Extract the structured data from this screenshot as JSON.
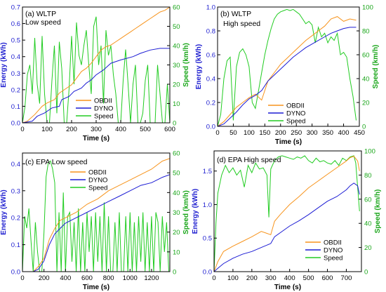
{
  "colors": {
    "obd": "#f7941d",
    "dyno": "#1c1cd4",
    "speed": "#22cc22",
    "axis": "#000000",
    "energy_axis": "#1f1fd0",
    "speed_axis": "#1aa61a"
  },
  "chart_data": [
    {
      "type": "line",
      "label": "(a) WLTP",
      "subtitle": "Low speed",
      "xlabel": "Time (s)",
      "ylabel_left": "Energy (kWh)",
      "ylabel_right": "Speed (km/h)",
      "xlim": [
        0,
        600
      ],
      "ylim_left": [
        0,
        0.7
      ],
      "ylim_right": [
        0,
        60
      ],
      "xticks": [
        "0",
        "100",
        "200",
        "300",
        "400",
        "500",
        "600"
      ],
      "yticks_left": [
        "0.0",
        "0.1",
        "0.2",
        "0.3",
        "0.4",
        "0.5",
        "0.6",
        "0.7"
      ],
      "yticks_right": [
        "0",
        "10",
        "20",
        "30",
        "40",
        "50",
        "60"
      ],
      "legend": [
        "OBDII",
        "DYNO",
        "Speed"
      ],
      "legend_position": "bottom-center",
      "series": [
        {
          "name": "OBDII",
          "axis": "left",
          "x": [
            0,
            20,
            50,
            80,
            100,
            130,
            150,
            180,
            200,
            220,
            240,
            260,
            280,
            300,
            320,
            340,
            360,
            380,
            400,
            420,
            440,
            460,
            480,
            500,
            520,
            540,
            560,
            580,
            600
          ],
          "y": [
            0,
            0.01,
            0.05,
            0.1,
            0.12,
            0.14,
            0.18,
            0.21,
            0.23,
            0.27,
            0.31,
            0.33,
            0.36,
            0.4,
            0.44,
            0.46,
            0.47,
            0.49,
            0.51,
            0.53,
            0.55,
            0.57,
            0.59,
            0.61,
            0.63,
            0.65,
            0.67,
            0.68,
            0.7
          ]
        },
        {
          "name": "DYNO",
          "axis": "left",
          "x": [
            0,
            40,
            60,
            90,
            120,
            150,
            160,
            190,
            210,
            240,
            260,
            280,
            300,
            330,
            360,
            400,
            450,
            480,
            520,
            560,
            600
          ],
          "y": [
            0,
            0.01,
            0.04,
            0.06,
            0.09,
            0.1,
            0.14,
            0.16,
            0.19,
            0.21,
            0.24,
            0.26,
            0.29,
            0.32,
            0.36,
            0.38,
            0.4,
            0.42,
            0.44,
            0.45,
            0.45
          ]
        },
        {
          "name": "Speed",
          "axis": "right",
          "x": [
            0,
            10,
            20,
            30,
            40,
            50,
            60,
            70,
            80,
            90,
            100,
            110,
            120,
            130,
            140,
            150,
            160,
            170,
            180,
            190,
            200,
            210,
            220,
            230,
            240,
            250,
            260,
            270,
            280,
            290,
            300,
            310,
            320,
            330,
            340,
            350,
            360,
            370,
            380,
            390,
            400,
            410,
            420,
            430,
            440,
            450,
            460,
            470,
            480,
            490,
            500,
            510,
            520,
            530,
            540,
            550,
            560,
            570,
            580,
            590,
            600
          ],
          "y": [
            0,
            8,
            25,
            30,
            15,
            44,
            20,
            10,
            45,
            15,
            0,
            0,
            22,
            40,
            5,
            42,
            28,
            0,
            0,
            18,
            45,
            20,
            52,
            35,
            30,
            40,
            48,
            30,
            15,
            50,
            55,
            30,
            40,
            10,
            48,
            35,
            40,
            25,
            15,
            0,
            0,
            22,
            38,
            20,
            0,
            20,
            30,
            0,
            0,
            5,
            22,
            30,
            0,
            0,
            0,
            30,
            15,
            0,
            0,
            20,
            0
          ]
        }
      ]
    },
    {
      "type": "line",
      "label": "(b) WLTP",
      "subtitle": "High speed",
      "xlabel": "Time (s)",
      "ylabel_left": "Energy (kWh)",
      "ylabel_right": "Speed (km/h)",
      "xlim": [
        0,
        450
      ],
      "ylim_left": [
        0,
        1.0
      ],
      "ylim_right": [
        0,
        100
      ],
      "xticks": [
        "0",
        "50",
        "100",
        "150",
        "200",
        "250",
        "300",
        "350",
        "400",
        "450"
      ],
      "yticks_left": [
        "0.0",
        "0.2",
        "0.4",
        "0.6",
        "0.8",
        "1.0"
      ],
      "yticks_right": [
        "0",
        "20",
        "40",
        "60",
        "80",
        "100"
      ],
      "legend": [
        "OBDII",
        "DYNO",
        "Speed"
      ],
      "legend_position": "bottom-center",
      "series": [
        {
          "name": "OBDII",
          "axis": "left",
          "x": [
            0,
            20,
            40,
            60,
            80,
            100,
            120,
            140,
            160,
            180,
            200,
            220,
            240,
            260,
            280,
            300,
            320,
            340,
            360,
            380,
            400,
            420,
            440
          ],
          "y": [
            0,
            0.04,
            0.1,
            0.16,
            0.2,
            0.24,
            0.27,
            0.22,
            0.38,
            0.45,
            0.52,
            0.57,
            0.62,
            0.67,
            0.72,
            0.76,
            0.8,
            0.84,
            0.9,
            0.92,
            0.88,
            0.9,
            0.89
          ]
        },
        {
          "name": "DYNO",
          "axis": "left",
          "x": [
            0,
            20,
            40,
            60,
            80,
            100,
            120,
            140,
            160,
            180,
            200,
            220,
            240,
            260,
            280,
            300,
            320,
            340,
            360,
            380,
            400,
            420,
            440
          ],
          "y": [
            0,
            0.02,
            0.07,
            0.12,
            0.18,
            0.23,
            0.26,
            0.3,
            0.38,
            0.43,
            0.48,
            0.53,
            0.58,
            0.62,
            0.66,
            0.69,
            0.72,
            0.75,
            0.78,
            0.8,
            0.82,
            0.83,
            0.83
          ]
        },
        {
          "name": "Speed",
          "axis": "right",
          "x": [
            0,
            10,
            20,
            30,
            40,
            50,
            60,
            70,
            80,
            90,
            100,
            110,
            120,
            130,
            140,
            150,
            160,
            170,
            180,
            190,
            200,
            210,
            220,
            230,
            240,
            250,
            260,
            270,
            280,
            290,
            300,
            310,
            320,
            330,
            340,
            350,
            360,
            370,
            380,
            390,
            400,
            410,
            420,
            430,
            440
          ],
          "y": [
            0,
            10,
            40,
            55,
            58,
            5,
            50,
            62,
            65,
            60,
            50,
            20,
            15,
            30,
            45,
            60,
            72,
            82,
            90,
            94,
            96,
            97,
            98,
            97,
            98,
            96,
            94,
            90,
            86,
            88,
            85,
            70,
            83,
            75,
            78,
            70,
            75,
            72,
            78,
            60,
            62,
            58,
            40,
            25,
            5
          ]
        }
      ]
    },
    {
      "type": "line",
      "label": "(c) EPA Low speed",
      "xlabel": "Time (s)",
      "ylabel_left": "Energy (kWh)",
      "ylabel_right": "Speed (km/h)",
      "xlim": [
        0,
        1370
      ],
      "ylim_left": [
        0,
        0.44
      ],
      "ylim_right": [
        0,
        60
      ],
      "xticks": [
        "0",
        "200",
        "400",
        "600",
        "800",
        "1000",
        "1200"
      ],
      "yticks_left": [
        "0.0",
        "0.1",
        "0.2",
        "0.3",
        "0.4"
      ],
      "yticks_right": [
        "0",
        "10",
        "20",
        "30",
        "40",
        "50",
        "60"
      ],
      "legend": [
        "OBDII",
        "DYNO",
        "Speed"
      ],
      "legend_position": "top-center",
      "series": [
        {
          "name": "OBDII",
          "axis": "left",
          "x": [
            0,
            100,
            150,
            200,
            250,
            300,
            350,
            400,
            500,
            600,
            700,
            800,
            900,
            1000,
            1100,
            1200,
            1300,
            1370
          ],
          "y": [
            0,
            0.0,
            0.02,
            0.05,
            0.12,
            0.16,
            0.19,
            0.2,
            0.22,
            0.25,
            0.27,
            0.3,
            0.32,
            0.34,
            0.36,
            0.38,
            0.41,
            0.42
          ]
        },
        {
          "name": "DYNO",
          "axis": "left",
          "x": [
            0,
            100,
            150,
            200,
            250,
            300,
            350,
            400,
            500,
            600,
            700,
            800,
            900,
            1000,
            1100,
            1200,
            1300,
            1370
          ],
          "y": [
            0,
            0.0,
            0.01,
            0.04,
            0.1,
            0.14,
            0.16,
            0.18,
            0.2,
            0.22,
            0.24,
            0.26,
            0.28,
            0.3,
            0.32,
            0.33,
            0.35,
            0.36
          ]
        },
        {
          "name": "Speed",
          "axis": "right",
          "x": [
            0,
            20,
            40,
            60,
            80,
            100,
            120,
            140,
            160,
            180,
            200,
            220,
            240,
            260,
            280,
            300,
            320,
            340,
            360,
            380,
            400,
            420,
            440,
            460,
            480,
            500,
            520,
            540,
            560,
            580,
            600,
            620,
            640,
            660,
            680,
            700,
            720,
            740,
            760,
            780,
            800,
            820,
            840,
            860,
            880,
            900,
            920,
            940,
            960,
            980,
            1000,
            1020,
            1040,
            1060,
            1080,
            1100,
            1120,
            1140,
            1160,
            1180,
            1200,
            1220,
            1240,
            1260,
            1280,
            1300,
            1320,
            1340,
            1360
          ],
          "y": [
            0,
            28,
            22,
            32,
            15,
            0,
            25,
            10,
            0,
            0,
            20,
            48,
            55,
            56,
            52,
            45,
            0,
            30,
            0,
            40,
            0,
            28,
            30,
            5,
            25,
            0,
            32,
            0,
            25,
            0,
            30,
            10,
            28,
            0,
            30,
            5,
            28,
            0,
            35,
            0,
            28,
            0,
            0,
            25,
            0,
            30,
            0,
            0,
            28,
            0,
            30,
            0,
            25,
            0,
            28,
            5,
            30,
            0,
            25,
            0,
            28,
            0,
            30,
            25,
            0,
            28,
            10,
            25,
            0
          ]
        }
      ]
    },
    {
      "type": "line",
      "label": "(d) EPA High speed",
      "xlabel": "Time (s)",
      "ylabel_left": "Energy (kWh)",
      "ylabel_right": "Speed (km/h)",
      "xlim": [
        0,
        780
      ],
      "ylim_left": [
        0,
        1.8
      ],
      "ylim_right": [
        0,
        100
      ],
      "xticks": [
        "0",
        "100",
        "200",
        "300",
        "400",
        "500",
        "600",
        "700"
      ],
      "yticks_left": [
        "0.0",
        "0.5",
        "1.0",
        "1.5"
      ],
      "yticks_right": [
        "0",
        "20",
        "40",
        "60",
        "80",
        "100"
      ],
      "legend": [
        "OBDII",
        "DYNO",
        "Speed"
      ],
      "legend_position": "bottom-right",
      "series": [
        {
          "name": "OBDII",
          "axis": "left",
          "x": [
            0,
            20,
            50,
            100,
            150,
            200,
            250,
            300,
            320,
            350,
            400,
            450,
            500,
            550,
            600,
            650,
            700,
            720,
            740,
            760,
            770
          ],
          "y": [
            0,
            0.15,
            0.3,
            0.38,
            0.45,
            0.52,
            0.6,
            0.55,
            0.75,
            0.85,
            1.0,
            1.12,
            1.25,
            1.35,
            1.45,
            1.55,
            1.65,
            1.7,
            1.72,
            1.65,
            1.5
          ]
        },
        {
          "name": "DYNO",
          "axis": "left",
          "x": [
            0,
            20,
            50,
            100,
            150,
            200,
            250,
            300,
            320,
            350,
            400,
            450,
            500,
            550,
            600,
            650,
            700,
            720,
            740,
            760,
            770
          ],
          "y": [
            0,
            0.05,
            0.12,
            0.2,
            0.26,
            0.3,
            0.36,
            0.42,
            0.52,
            0.58,
            0.68,
            0.76,
            0.85,
            0.95,
            1.05,
            1.12,
            1.22,
            1.28,
            1.32,
            1.28,
            1.15
          ]
        },
        {
          "name": "Speed",
          "axis": "right",
          "x": [
            0,
            10,
            20,
            40,
            60,
            80,
            100,
            120,
            140,
            160,
            180,
            200,
            220,
            240,
            260,
            280,
            290,
            300,
            320,
            340,
            360,
            380,
            400,
            420,
            440,
            460,
            480,
            500,
            520,
            540,
            560,
            580,
            600,
            620,
            640,
            660,
            680,
            700,
            720,
            740,
            750,
            760,
            770
          ],
          "y": [
            0,
            40,
            65,
            80,
            88,
            82,
            86,
            80,
            84,
            70,
            88,
            82,
            90,
            85,
            86,
            80,
            45,
            85,
            92,
            95,
            96,
            95,
            94,
            93,
            95,
            94,
            96,
            92,
            90,
            94,
            91,
            92,
            90,
            89,
            92,
            88,
            94,
            92,
            95,
            96,
            90,
            70,
            50
          ]
        }
      ]
    }
  ]
}
